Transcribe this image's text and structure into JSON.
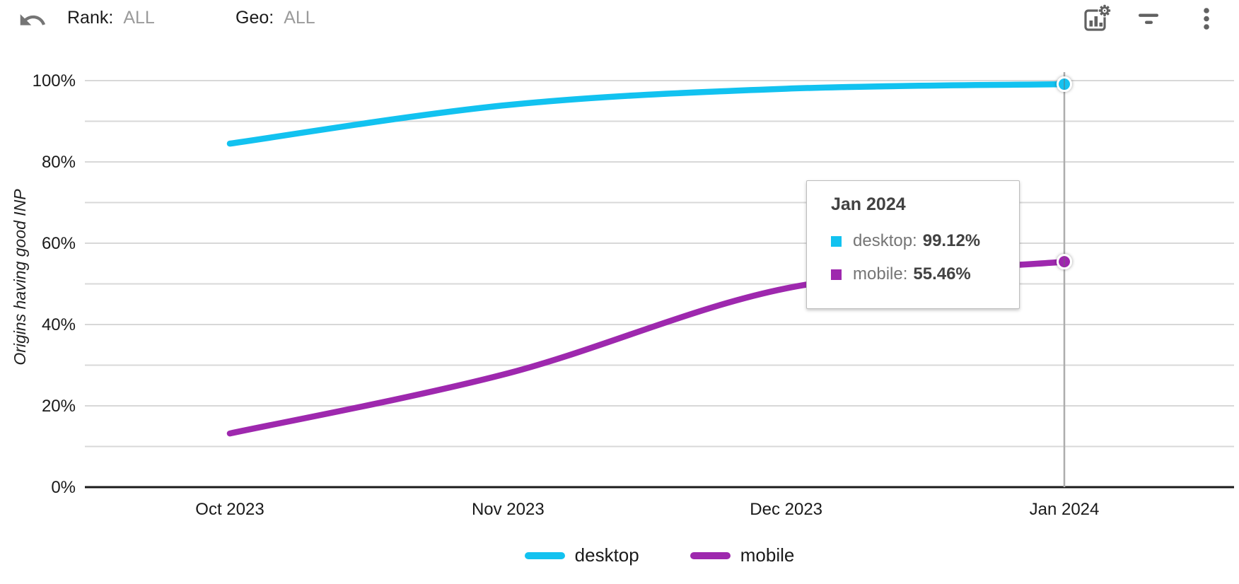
{
  "toolbar": {
    "undo_icon": "undo-icon",
    "rank_label": "Rank:",
    "rank_value": "ALL",
    "geo_label": "Geo:",
    "geo_value": "ALL",
    "right_icons": [
      "chart-settings-icon",
      "filter-icon",
      "more-vertical-icon"
    ]
  },
  "colors": {
    "desktop": "#12c2f0",
    "mobile": "#9e28ae",
    "gridline": "#d8d8d8",
    "axis": "#1a1a1a",
    "highlight_line": "#adadad",
    "axis_text": "#1a1a1a",
    "muted_text": "#9b9b9b",
    "icon": "#616161",
    "tooltip_label": "#757575",
    "tooltip_value": "#424242"
  },
  "chart_data": {
    "type": "line",
    "title": "",
    "xlabel": "",
    "ylabel": "Origins having good INP",
    "categories": [
      "Oct 2023",
      "Nov 2023",
      "Dec 2023",
      "Jan 2024"
    ],
    "series": [
      {
        "name": "desktop",
        "color": "#12c2f0",
        "values": [
          84.5,
          94.0,
          98.0,
          99.12
        ]
      },
      {
        "name": "mobile",
        "color": "#9e28ae",
        "values": [
          13.2,
          28.0,
          48.9,
          55.46
        ]
      }
    ],
    "ylim": [
      0,
      100
    ],
    "y_gridlines_every": 10,
    "y_ticks": [
      {
        "value": 0,
        "label": "0%"
      },
      {
        "value": 20,
        "label": "20%"
      },
      {
        "value": 40,
        "label": "40%"
      },
      {
        "value": 60,
        "label": "60%"
      },
      {
        "value": 80,
        "label": "80%"
      },
      {
        "value": 100,
        "label": "100%"
      }
    ],
    "grid": true,
    "curve": "smooth",
    "legend_position": "bottom",
    "highlight": {
      "index": 3,
      "label": "Jan 2024"
    }
  },
  "tooltip": {
    "title": "Jan 2024",
    "rows": [
      {
        "series": "desktop",
        "label": "desktop:",
        "value": "99.12%"
      },
      {
        "series": "mobile",
        "label": "mobile:",
        "value": "55.46%"
      }
    ]
  },
  "legend": {
    "items": [
      {
        "label": "desktop"
      },
      {
        "label": "mobile"
      }
    ]
  }
}
